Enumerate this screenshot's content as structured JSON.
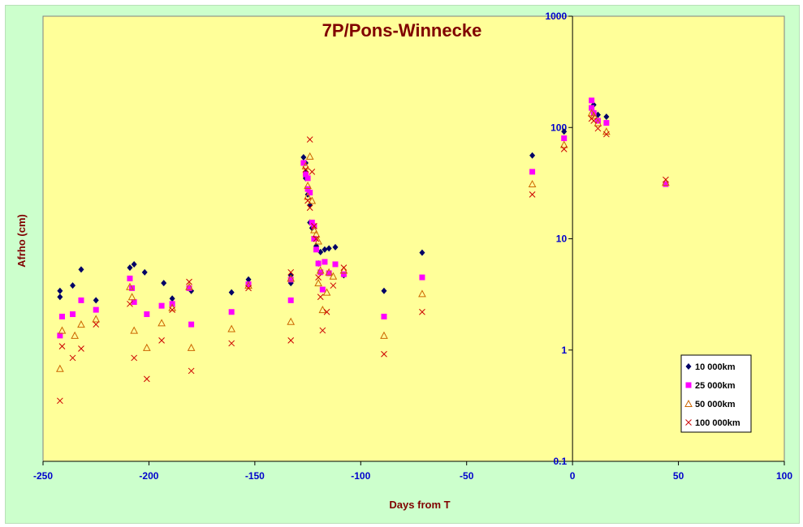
{
  "chart_data": {
    "type": "scatter",
    "title": "7P/Pons-Winnecke",
    "xlabel": "Days from  T",
    "ylabel": "Afrho (cm)",
    "xlim": [
      -250,
      100
    ],
    "ylim": [
      0.1,
      1000
    ],
    "yscale": "log",
    "grid": false,
    "legend_position": "bottom-right",
    "x_ticks": [
      -250,
      -200,
      -150,
      -100,
      -50,
      0,
      50,
      100
    ],
    "x_tick_labels": [
      "-250",
      "-200",
      "-150",
      "-100",
      "-50",
      "0",
      "50",
      "100"
    ],
    "y_ticks": [
      0.1,
      1,
      10,
      100,
      1000
    ],
    "y_tick_labels": [
      "0.1",
      "1",
      "10",
      "100",
      "1000"
    ],
    "colors": {
      "plot_background": "#ffff99",
      "frame_background": "#ccffcc",
      "axis_text": "#0000cc",
      "title_text": "#800000"
    },
    "series": [
      {
        "name": "10 000km",
        "marker": "diamond",
        "color": "#000066",
        "points": [
          [
            -242,
            3.4
          ],
          [
            -242,
            3.0
          ],
          [
            -236,
            3.8
          ],
          [
            -232,
            5.3
          ],
          [
            -225,
            2.8
          ],
          [
            -209,
            5.5
          ],
          [
            -207,
            5.9
          ],
          [
            -202,
            5.0
          ],
          [
            -193,
            4.0
          ],
          [
            -189,
            2.9
          ],
          [
            -180,
            3.4
          ],
          [
            -161,
            3.3
          ],
          [
            -153,
            4.3
          ],
          [
            -133,
            4.0
          ],
          [
            -133,
            4.7
          ],
          [
            -127,
            54
          ],
          [
            -126,
            48
          ],
          [
            -126,
            40
          ],
          [
            -126,
            35
          ],
          [
            -125,
            25
          ],
          [
            -124,
            20
          ],
          [
            -124,
            14
          ],
          [
            -123,
            12.5
          ],
          [
            -122,
            10
          ],
          [
            -121,
            8.6
          ],
          [
            -120,
            6.0
          ],
          [
            -119,
            7.6
          ],
          [
            -117,
            8.0
          ],
          [
            -115,
            8.2
          ],
          [
            -112,
            8.4
          ],
          [
            -108,
            4.7
          ],
          [
            -89,
            3.4
          ],
          [
            -71,
            7.5
          ],
          [
            -19,
            56
          ],
          [
            -4,
            92
          ],
          [
            9,
            150
          ],
          [
            10,
            160
          ],
          [
            12,
            130
          ],
          [
            16,
            125
          ]
        ]
      },
      {
        "name": "25 000km",
        "marker": "square",
        "color": "#ff00ff",
        "points": [
          [
            -242,
            1.35
          ],
          [
            -241,
            2.0
          ],
          [
            -236,
            2.1
          ],
          [
            -232,
            2.8
          ],
          [
            -225,
            2.3
          ],
          [
            -209,
            4.4
          ],
          [
            -208,
            3.6
          ],
          [
            -207,
            2.7
          ],
          [
            -201,
            2.1
          ],
          [
            -194,
            2.5
          ],
          [
            -189,
            2.6
          ],
          [
            -181,
            3.6
          ],
          [
            -180,
            1.7
          ],
          [
            -161,
            2.2
          ],
          [
            -153,
            3.9
          ],
          [
            -133,
            4.3
          ],
          [
            -133,
            2.8
          ],
          [
            -127,
            48
          ],
          [
            -126,
            38
          ],
          [
            -125,
            35
          ],
          [
            -125,
            28
          ],
          [
            -124,
            26
          ],
          [
            -123,
            14
          ],
          [
            -122,
            13
          ],
          [
            -122,
            10
          ],
          [
            -121,
            8.0
          ],
          [
            -120,
            6.0
          ],
          [
            -119,
            5.0
          ],
          [
            -118,
            3.5
          ],
          [
            -117,
            6.2
          ],
          [
            -115,
            4.9
          ],
          [
            -112,
            5.9
          ],
          [
            -108,
            4.8
          ],
          [
            -89,
            2.0
          ],
          [
            -71,
            4.5
          ],
          [
            -19,
            40
          ],
          [
            -4,
            80
          ],
          [
            9,
            175
          ],
          [
            9,
            150
          ],
          [
            10,
            135
          ],
          [
            12,
            115
          ],
          [
            16,
            110
          ],
          [
            44,
            31
          ]
        ]
      },
      {
        "name": "50 000km",
        "marker": "triangle",
        "color": "#cc6600",
        "points": [
          [
            -242,
            0.68
          ],
          [
            -241,
            1.5
          ],
          [
            -235,
            1.35
          ],
          [
            -232,
            1.7
          ],
          [
            -225,
            1.9
          ],
          [
            -209,
            3.7
          ],
          [
            -208,
            3.0
          ],
          [
            -207,
            1.5
          ],
          [
            -201,
            1.05
          ],
          [
            -194,
            1.75
          ],
          [
            -189,
            2.4
          ],
          [
            -181,
            3.7
          ],
          [
            -180,
            1.05
          ],
          [
            -161,
            1.55
          ],
          [
            -153,
            3.8
          ],
          [
            -133,
            4.4
          ],
          [
            -133,
            1.8
          ],
          [
            -126,
            45
          ],
          [
            -125,
            30
          ],
          [
            -125,
            24
          ],
          [
            -124,
            55
          ],
          [
            -123,
            22
          ],
          [
            -122,
            12
          ],
          [
            -121,
            11
          ],
          [
            -120,
            9.5
          ],
          [
            -120,
            4.0
          ],
          [
            -119,
            5.2
          ],
          [
            -118,
            2.3
          ],
          [
            -116,
            3.3
          ],
          [
            -115,
            5.0
          ],
          [
            -113,
            4.6
          ],
          [
            -108,
            5.2
          ],
          [
            -89,
            1.35
          ],
          [
            -71,
            3.2
          ],
          [
            -19,
            31
          ],
          [
            -4,
            70
          ],
          [
            9,
            135
          ],
          [
            10,
            128
          ],
          [
            12,
            110
          ],
          [
            16,
            92
          ],
          [
            44,
            32
          ]
        ]
      },
      {
        "name": "100 000km",
        "marker": "cross",
        "color": "#cc0000",
        "points": [
          [
            -242,
            0.35
          ],
          [
            -241,
            1.08
          ],
          [
            -236,
            0.85
          ],
          [
            -232,
            1.03
          ],
          [
            -225,
            1.7
          ],
          [
            -209,
            2.6
          ],
          [
            -207,
            0.85
          ],
          [
            -201,
            0.55
          ],
          [
            -194,
            1.22
          ],
          [
            -189,
            2.3
          ],
          [
            -181,
            4.1
          ],
          [
            -180,
            0.65
          ],
          [
            -161,
            1.15
          ],
          [
            -153,
            3.6
          ],
          [
            -133,
            5.0
          ],
          [
            -133,
            1.22
          ],
          [
            -126,
            42
          ],
          [
            -125,
            22
          ],
          [
            -124,
            78
          ],
          [
            -124,
            19
          ],
          [
            -123,
            40
          ],
          [
            -122,
            13
          ],
          [
            -121,
            10
          ],
          [
            -120,
            4.5
          ],
          [
            -119,
            3.0
          ],
          [
            -118,
            1.5
          ],
          [
            -116,
            2.2
          ],
          [
            -113,
            3.8
          ],
          [
            -108,
            5.5
          ],
          [
            -89,
            0.92
          ],
          [
            -71,
            2.2
          ],
          [
            -19,
            25
          ],
          [
            -4,
            64
          ],
          [
            9,
            120
          ],
          [
            10,
            115
          ],
          [
            12,
            98
          ],
          [
            16,
            87
          ],
          [
            44,
            34
          ]
        ]
      }
    ]
  }
}
